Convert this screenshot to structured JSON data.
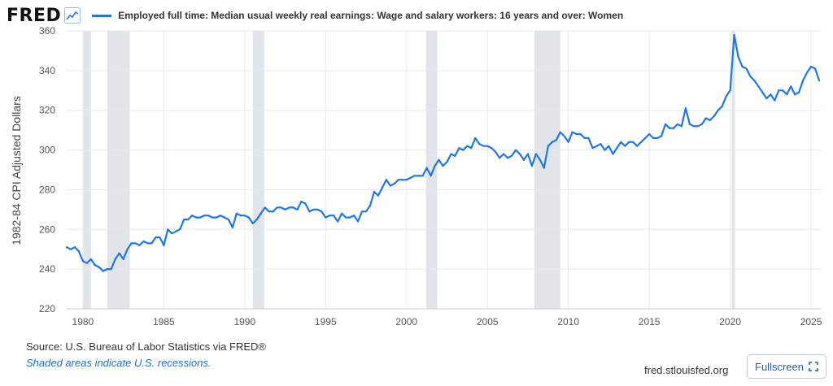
{
  "header": {
    "logo_text": "FRED",
    "legend_label": "Employed full time: Median usual weekly real earnings: Wage and salary workers: 16 years and over: Women"
  },
  "footer": {
    "source": "Source: U.S. Bureau of Labor Statistics via FRED®",
    "recession_note": "Shaded areas indicate U.S. recessions.",
    "site": "fred.stlouisfed.org",
    "fullscreen_label": "Fullscreen"
  },
  "colors": {
    "series": "#1f77e6",
    "recession": "#e1e5e9",
    "grid": "#e6e9ed"
  },
  "icons": {
    "logo_graph": "line-graph-icon",
    "fullscreen": "expand-icon"
  },
  "chart_data": {
    "type": "line",
    "title": "",
    "xlabel": "",
    "ylabel": "1982-84 CPI Adjusted Dollars",
    "xlim": [
      1979.0,
      2025.6
    ],
    "ylim": [
      220,
      360
    ],
    "x_ticks": [
      "1980",
      "1985",
      "1990",
      "1995",
      "2000",
      "2005",
      "2010",
      "2015",
      "2020",
      "2025"
    ],
    "y_ticks": [
      "220",
      "240",
      "260",
      "280",
      "300",
      "320",
      "340",
      "360"
    ],
    "grid": true,
    "legend": "top",
    "recessions": [
      [
        1980.0,
        1980.5
      ],
      [
        1981.5,
        1982.9
      ],
      [
        1990.5,
        1991.2
      ],
      [
        2001.2,
        2001.9
      ],
      [
        2007.9,
        2009.5
      ],
      [
        2020.1,
        2020.3
      ]
    ],
    "series": [
      {
        "name": "Employed full time: Median usual weekly real earnings: Wage and salary workers: 16 years and over: Women",
        "x": [
          1979.0,
          1979.25,
          1979.5,
          1979.75,
          1980.0,
          1980.25,
          1980.5,
          1980.75,
          1981.0,
          1981.25,
          1981.5,
          1981.75,
          1982.0,
          1982.25,
          1982.5,
          1982.75,
          1983.0,
          1983.25,
          1983.5,
          1983.75,
          1984.0,
          1984.25,
          1984.5,
          1984.75,
          1985.0,
          1985.25,
          1985.5,
          1985.75,
          1986.0,
          1986.25,
          1986.5,
          1986.75,
          1987.0,
          1987.25,
          1987.5,
          1987.75,
          1988.0,
          1988.25,
          1988.5,
          1988.75,
          1989.0,
          1989.25,
          1989.5,
          1989.75,
          1990.0,
          1990.25,
          1990.5,
          1990.75,
          1991.0,
          1991.25,
          1991.5,
          1991.75,
          1992.0,
          1992.25,
          1992.5,
          1992.75,
          1993.0,
          1993.25,
          1993.5,
          1993.75,
          1994.0,
          1994.25,
          1994.5,
          1994.75,
          1995.0,
          1995.25,
          1995.5,
          1995.75,
          1996.0,
          1996.25,
          1996.5,
          1996.75,
          1997.0,
          1997.25,
          1997.5,
          1997.75,
          1998.0,
          1998.25,
          1998.5,
          1998.75,
          1999.0,
          1999.25,
          1999.5,
          1999.75,
          2000.0,
          2000.25,
          2000.5,
          2000.75,
          2001.0,
          2001.25,
          2001.5,
          2001.75,
          2002.0,
          2002.25,
          2002.5,
          2002.75,
          2003.0,
          2003.25,
          2003.5,
          2003.75,
          2004.0,
          2004.25,
          2004.5,
          2004.75,
          2005.0,
          2005.25,
          2005.5,
          2005.75,
          2006.0,
          2006.25,
          2006.5,
          2006.75,
          2007.0,
          2007.25,
          2007.5,
          2007.75,
          2008.0,
          2008.25,
          2008.5,
          2008.75,
          2009.0,
          2009.25,
          2009.5,
          2009.75,
          2010.0,
          2010.25,
          2010.5,
          2010.75,
          2011.0,
          2011.25,
          2011.5,
          2011.75,
          2012.0,
          2012.25,
          2012.5,
          2012.75,
          2013.0,
          2013.25,
          2013.5,
          2013.75,
          2014.0,
          2014.25,
          2014.5,
          2014.75,
          2015.0,
          2015.25,
          2015.5,
          2015.75,
          2016.0,
          2016.25,
          2016.5,
          2016.75,
          2017.0,
          2017.25,
          2017.5,
          2017.75,
          2018.0,
          2018.25,
          2018.5,
          2018.75,
          2019.0,
          2019.25,
          2019.5,
          2019.75,
          2020.0,
          2020.25,
          2020.5,
          2020.75,
          2021.0,
          2021.25,
          2021.5,
          2021.75,
          2022.0,
          2022.25,
          2022.5,
          2022.75,
          2023.0,
          2023.25,
          2023.5,
          2023.75,
          2024.0,
          2024.25,
          2024.5,
          2024.75,
          2025.0,
          2025.25,
          2025.5
        ],
        "values": [
          251,
          250,
          251,
          249,
          244,
          243,
          245,
          242,
          241,
          239,
          240,
          240,
          245,
          248,
          245,
          250,
          253,
          253,
          252,
          254,
          253,
          253,
          256,
          256,
          252,
          260,
          258,
          259,
          260,
          265,
          265,
          267,
          266,
          266,
          267,
          267,
          266,
          266,
          267,
          266,
          265,
          261,
          268,
          267,
          267,
          266,
          263,
          265,
          268,
          271,
          269,
          269,
          271,
          271,
          270,
          271,
          271,
          270,
          274,
          273,
          269,
          270,
          270,
          269,
          266,
          267,
          267,
          264,
          268,
          266,
          266,
          267,
          264,
          269,
          269,
          272,
          279,
          277,
          281,
          285,
          282,
          283,
          285,
          285,
          285,
          286,
          287,
          287,
          287,
          291,
          287,
          292,
          295,
          292,
          294,
          298,
          297,
          301,
          300,
          302,
          301,
          306,
          303,
          302,
          302,
          301,
          299,
          296,
          298,
          296,
          297,
          300,
          298,
          295,
          298,
          292,
          298,
          295,
          291,
          302,
          304,
          305,
          309,
          307,
          304,
          309,
          308,
          308,
          306,
          306,
          301,
          302,
          303,
          300,
          302,
          298,
          301,
          304,
          302,
          304,
          304,
          302,
          304,
          306,
          308,
          306,
          306,
          307,
          313,
          311,
          311,
          313,
          312,
          321,
          313,
          312,
          312,
          313,
          316,
          315,
          317,
          320,
          322,
          327,
          330,
          358,
          347,
          342,
          341,
          337,
          335,
          332,
          329,
          326,
          328,
          325,
          330,
          330,
          328,
          332,
          328,
          329,
          335,
          339,
          342,
          341,
          335
        ]
      }
    ]
  }
}
